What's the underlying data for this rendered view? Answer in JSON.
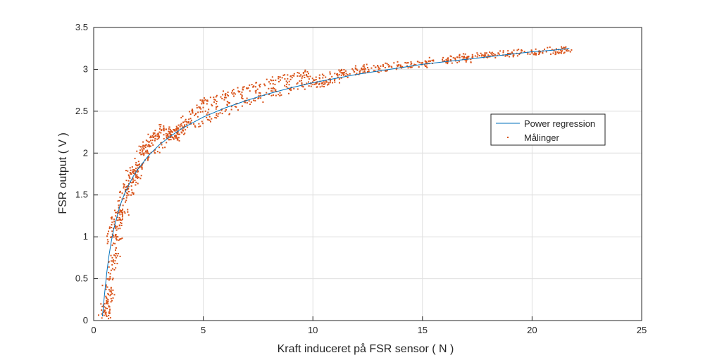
{
  "chart_data": {
    "type": "scatter",
    "title": "",
    "xlabel": "Kraft induceret på FSR sensor ( N )",
    "ylabel": "FSR output ( V )",
    "xlim": [
      0,
      25
    ],
    "ylim": [
      0,
      3.5
    ],
    "xticks": [
      "0",
      "5",
      "10",
      "15",
      "20",
      "25"
    ],
    "yticks": [
      "0",
      "0.5",
      "1",
      "1.5",
      "2",
      "2.5",
      "3",
      "3.5"
    ],
    "grid": true,
    "legend_position": "right-center",
    "series": [
      {
        "name": "Power regression",
        "kind": "line",
        "color": "#0072BD",
        "x": [
          0.4,
          0.5,
          0.6,
          0.7,
          0.8,
          0.9,
          1.0,
          1.2,
          1.4,
          1.6,
          1.8,
          2.0,
          2.5,
          3.0,
          3.5,
          4.0,
          5.0,
          6.0,
          7.0,
          8.0,
          9.0,
          10.0,
          11.0,
          12.0,
          13.0,
          14.0,
          15.0,
          16.0,
          17.0,
          18.0,
          19.0,
          20.0,
          21.0,
          21.7
        ],
        "y": [
          0.05,
          0.33,
          0.58,
          0.78,
          0.94,
          1.07,
          1.18,
          1.37,
          1.51,
          1.62,
          1.72,
          1.8,
          1.97,
          2.1,
          2.2,
          2.29,
          2.43,
          2.54,
          2.63,
          2.71,
          2.78,
          2.84,
          2.89,
          2.94,
          2.98,
          3.02,
          3.06,
          3.09,
          3.12,
          3.15,
          3.18,
          3.21,
          3.23,
          3.25
        ]
      },
      {
        "name": "Målinger",
        "kind": "scatter",
        "color": "#D95319",
        "x": [
          0.45,
          0.5,
          0.55,
          0.6,
          0.65,
          0.7,
          0.75,
          0.8,
          0.85,
          0.9,
          0.95,
          1.0,
          1.05,
          1.1,
          1.15,
          1.2,
          1.3,
          1.4,
          1.5,
          1.6,
          1.7,
          1.8,
          1.9,
          2.0,
          2.1,
          2.2,
          2.3,
          2.4,
          2.5,
          2.6,
          2.8,
          3.0,
          3.2,
          3.4,
          3.5,
          3.6,
          3.7,
          3.8,
          4.0,
          4.2,
          4.5,
          4.8,
          5.0,
          5.2,
          5.5,
          5.8,
          6.0,
          6.3,
          6.6,
          7.0,
          7.3,
          7.6,
          8.0,
          8.3,
          8.6,
          9.0,
          9.3,
          9.6,
          10.0,
          10.2,
          10.4,
          10.6,
          11.0,
          11.5,
          12.0,
          12.5,
          13.0,
          13.5,
          14.0,
          14.5,
          15.0,
          15.5,
          16.0,
          16.5,
          17.0,
          17.5,
          18.0,
          18.5,
          19.0,
          19.5,
          20.0,
          20.5,
          21.0,
          21.5,
          0.6,
          0.7,
          0.8,
          0.9,
          1.0,
          1.1,
          1.2,
          1.4,
          1.6,
          1.8,
          2.0,
          2.2,
          2.5,
          2.8,
          3.1,
          3.4,
          3.7,
          4.0,
          4.4,
          4.8,
          5.2,
          5.6,
          6.0,
          6.5,
          7.0,
          7.5,
          8.0,
          8.5,
          9.0,
          9.5,
          10.0,
          10.5,
          11.0,
          11.5,
          12.0,
          12.5,
          13.0,
          14.0,
          15.0,
          16.0,
          17.0,
          18.0,
          19.0,
          20.0,
          21.0,
          21.6,
          0.65,
          0.75,
          0.85,
          1.05,
          1.25,
          1.45,
          1.65,
          1.85,
          2.05,
          2.3,
          2.6,
          2.9,
          3.3,
          3.55,
          3.65,
          3.75,
          3.85,
          4.1,
          4.6,
          5.1,
          5.6,
          6.2,
          6.8,
          7.4,
          8.2,
          8.8,
          9.4,
          9.8,
          10.3,
          10.8,
          11.3,
          12.3,
          13.3,
          14.3,
          15.3,
          16.3,
          16.7,
          16.9,
          17.2,
          17.7,
          18.3,
          19.3,
          20.3,
          21.3
        ],
        "y": [
          0.1,
          0.2,
          0.15,
          0.4,
          0.2,
          0.5,
          0.3,
          1.0,
          0.9,
          1.1,
          1.15,
          1.25,
          1.2,
          1.3,
          1.35,
          1.2,
          1.45,
          1.5,
          1.6,
          1.6,
          1.75,
          1.8,
          1.75,
          1.85,
          2.0,
          2.05,
          2.05,
          2.1,
          2.1,
          2.2,
          2.2,
          2.25,
          2.3,
          2.2,
          2.25,
          2.25,
          2.2,
          2.3,
          2.35,
          2.4,
          2.5,
          2.55,
          2.6,
          2.62,
          2.64,
          2.67,
          2.7,
          2.72,
          2.74,
          2.77,
          2.8,
          2.82,
          2.85,
          2.87,
          2.9,
          2.92,
          2.92,
          2.93,
          2.85,
          2.85,
          2.83,
          2.86,
          2.95,
          2.98,
          3.0,
          3.02,
          3.02,
          3.04,
          3.05,
          3.07,
          3.08,
          3.1,
          3.1,
          3.12,
          3.14,
          3.15,
          3.17,
          3.18,
          3.19,
          3.2,
          3.21,
          3.22,
          3.23,
          3.24,
          0.05,
          0.1,
          0.6,
          0.7,
          0.8,
          1.0,
          1.1,
          1.3,
          1.5,
          1.65,
          1.7,
          1.85,
          1.95,
          2.0,
          2.1,
          2.2,
          2.2,
          2.25,
          2.35,
          2.35,
          2.4,
          2.45,
          2.5,
          2.55,
          2.6,
          2.65,
          2.7,
          2.72,
          2.75,
          2.8,
          2.82,
          2.85,
          2.88,
          2.92,
          2.95,
          2.97,
          3.0,
          3.03,
          3.06,
          3.1,
          3.12,
          3.15,
          3.18,
          3.2,
          3.22,
          3.22,
          0.25,
          0.35,
          0.75,
          1.0,
          1.3,
          1.55,
          1.7,
          1.8,
          1.9,
          2.0,
          2.15,
          2.2,
          2.28,
          2.22,
          2.28,
          2.18,
          2.3,
          2.3,
          2.45,
          2.5,
          2.55,
          2.6,
          2.65,
          2.72,
          2.78,
          2.82,
          2.86,
          2.95,
          2.9,
          2.88,
          2.96,
          3.0,
          3.02,
          3.04,
          3.07,
          3.1,
          3.14,
          3.15,
          3.12,
          3.16,
          3.17,
          3.19,
          3.21,
          3.23
        ]
      }
    ]
  },
  "colors": {
    "background": "#ffffff",
    "axes": "#262626",
    "grid": "#dfdfdf",
    "line": "#0072BD",
    "markers": "#D95319"
  }
}
